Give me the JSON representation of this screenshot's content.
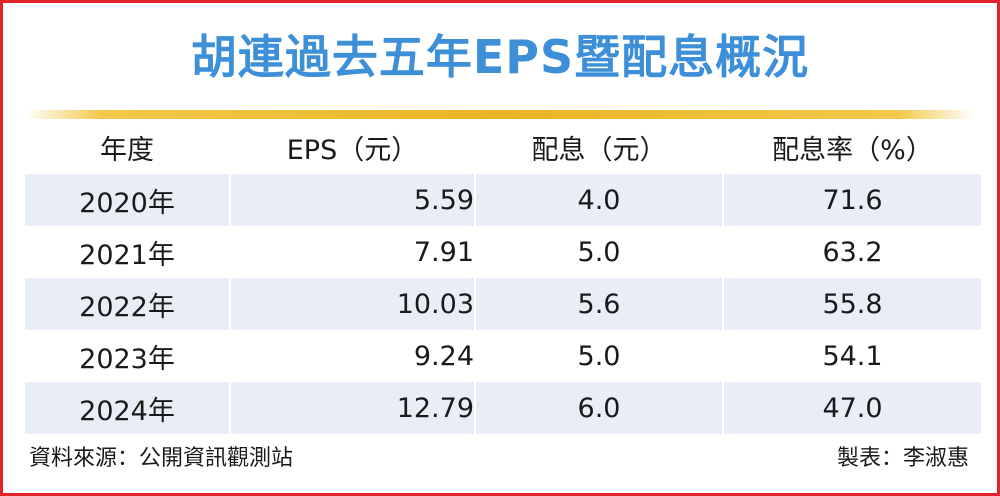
{
  "title": "胡連過去五年EPS暨配息概況",
  "colors": {
    "title": "#3d8fd8",
    "border": "#e3232a",
    "gold_bar": "#e9b423",
    "row_shade": "#e9eef6"
  },
  "footer": {
    "source": "資料來源：公開資訊觀測站",
    "credit": "製表：李淑惠"
  },
  "chart_data": {
    "type": "table",
    "title": "胡連過去五年EPS暨配息概況",
    "columns": [
      "年度",
      "EPS（元）",
      "配息（元）",
      "配息率（%）"
    ],
    "rows": [
      [
        "2020年",
        "5.59",
        "4.0",
        "71.6"
      ],
      [
        "2021年",
        "7.91",
        "5.0",
        "63.2"
      ],
      [
        "2022年",
        "10.03",
        "5.6",
        "55.8"
      ],
      [
        "2023年",
        "9.24",
        "5.0",
        "54.1"
      ],
      [
        "2024年",
        "12.79",
        "6.0",
        "47.0"
      ]
    ]
  }
}
